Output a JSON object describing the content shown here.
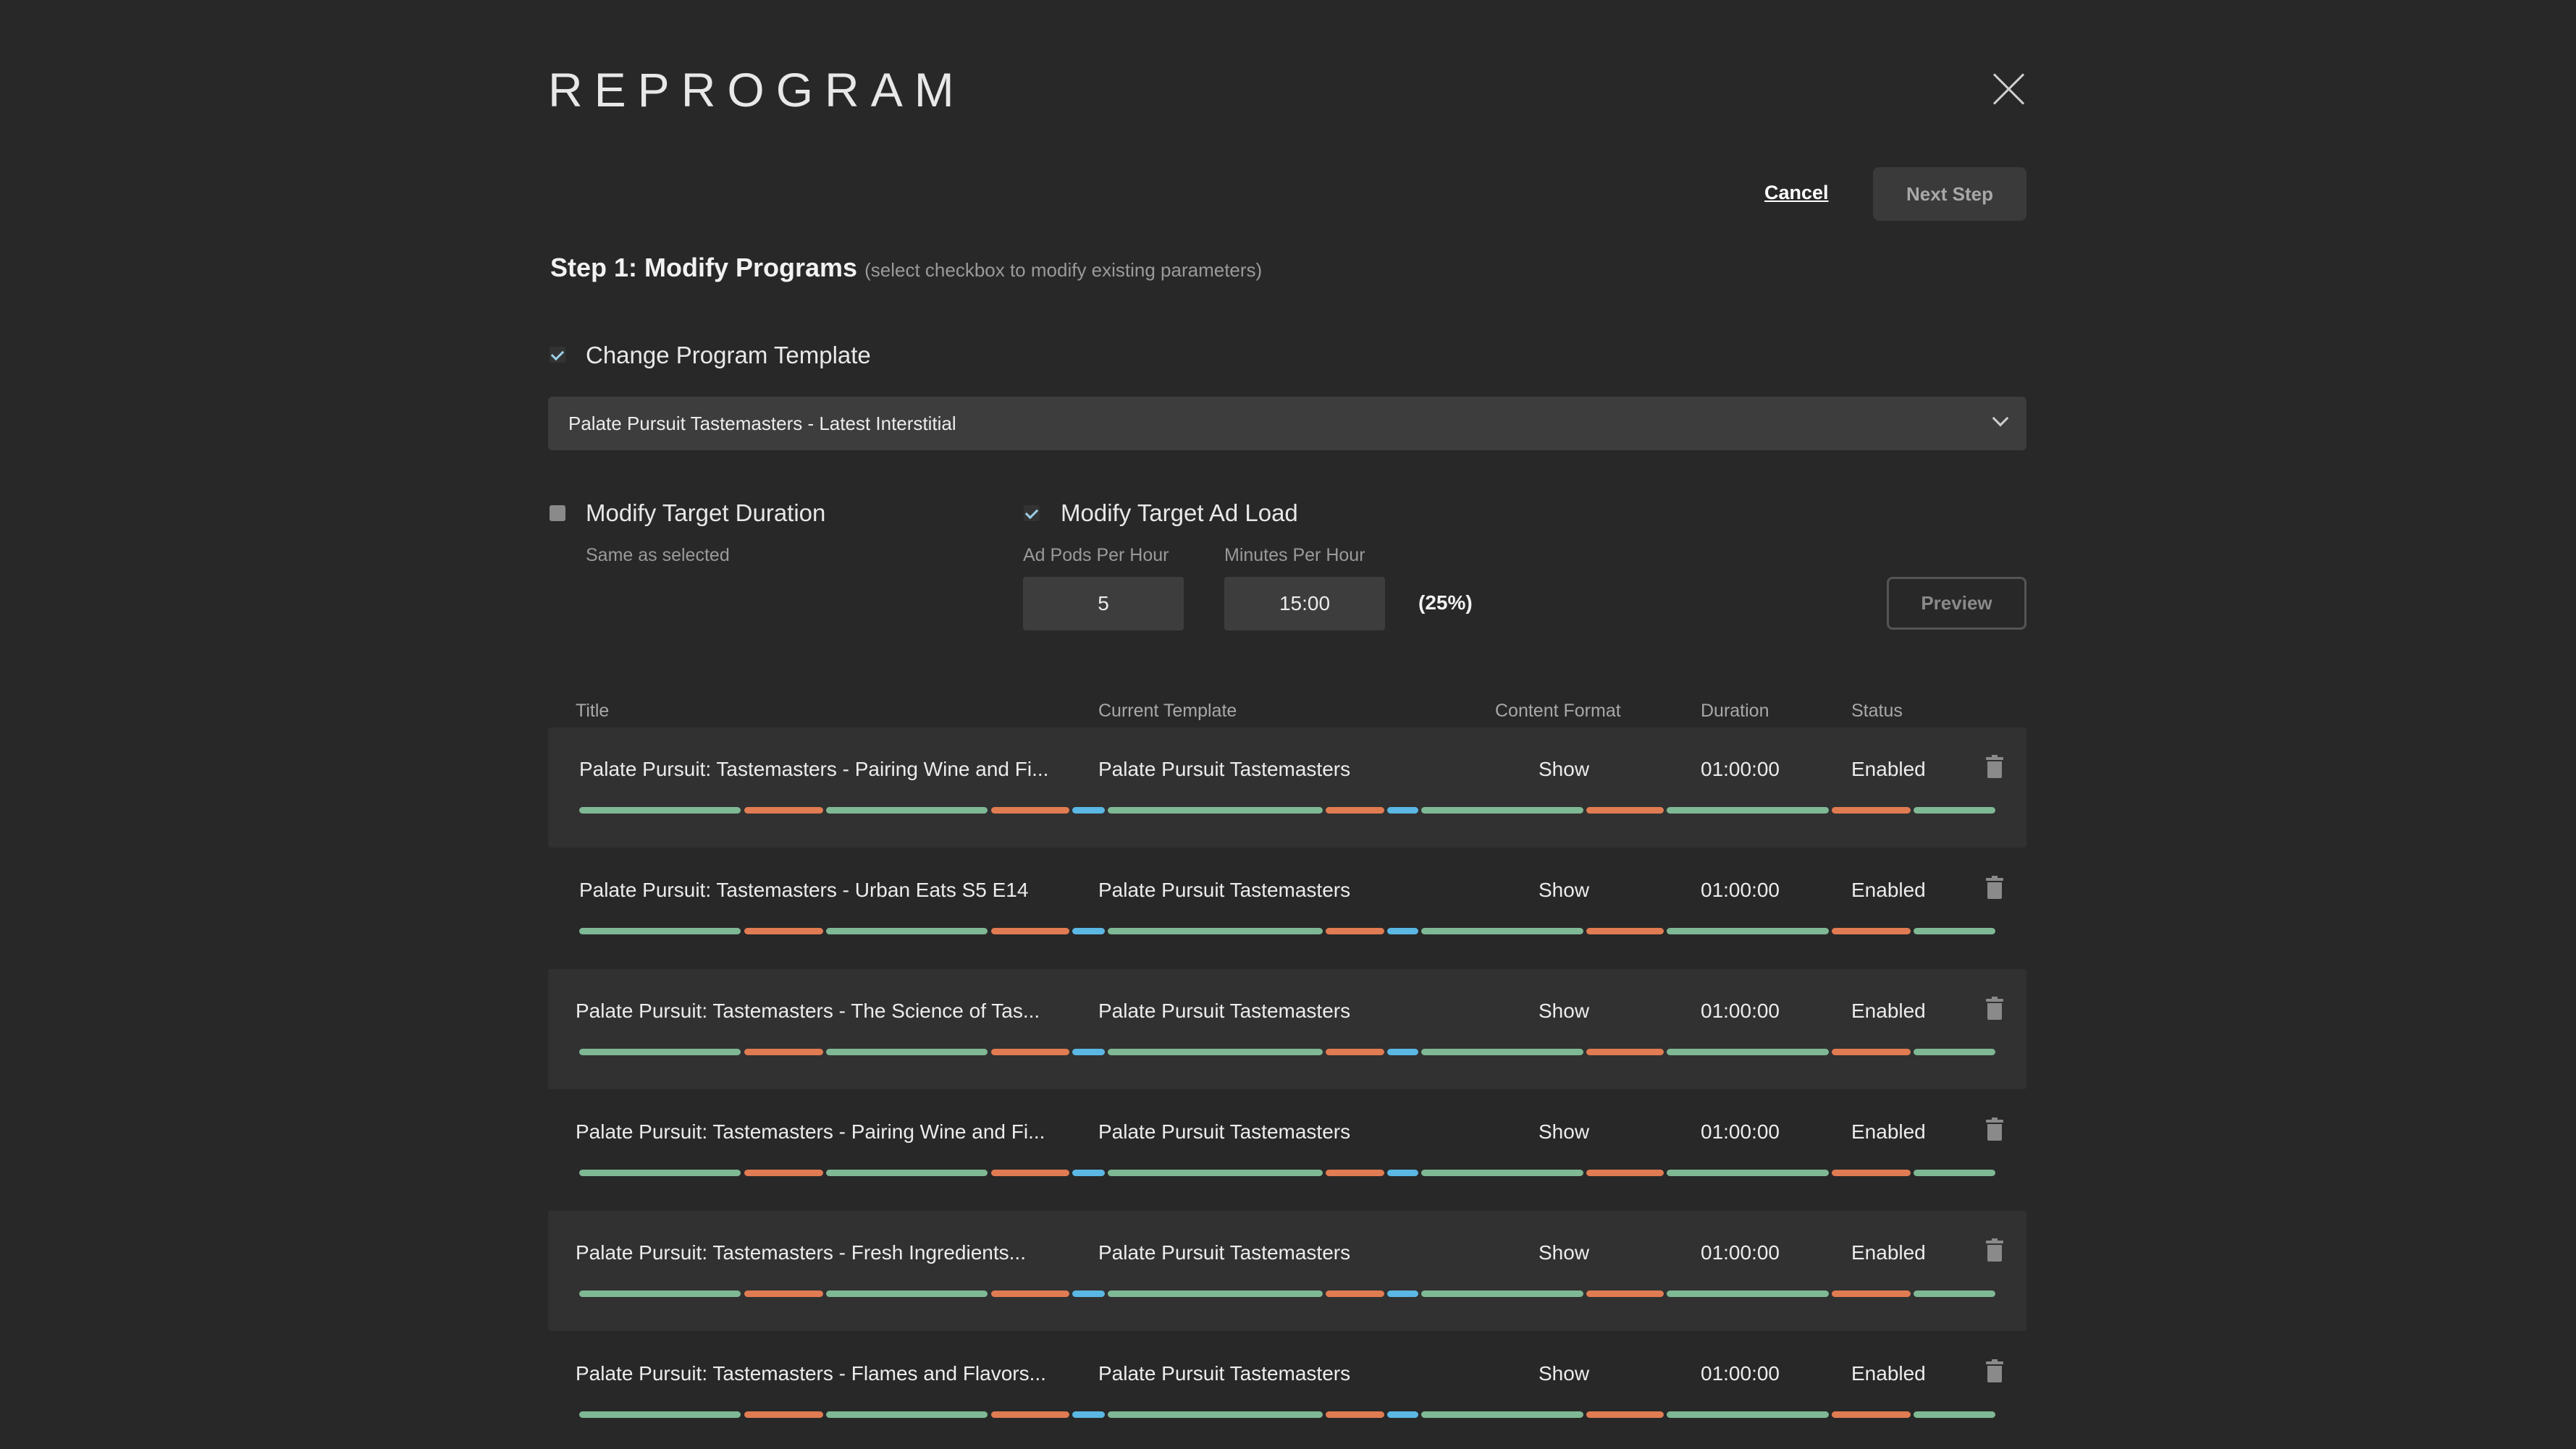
{
  "modal": {
    "title": "REPROGRAM",
    "cancel_label": "Cancel",
    "next_step_label": "Next Step"
  },
  "step": {
    "heading": "Step 1: Modify Programs",
    "hint": "(select checkbox to modify existing parameters)"
  },
  "template_option": {
    "label": "Change Program Template",
    "checked": true,
    "selected_value": "Palate Pursuit Tastemasters - Latest Interstitial"
  },
  "duration_option": {
    "label": "Modify Target Duration",
    "checked": false,
    "sublabel": "Same as selected"
  },
  "adload_option": {
    "label": "Modify Target Ad Load",
    "checked": true,
    "pods_label": "Ad Pods Per Hour",
    "pods_value": "5",
    "minutes_label": "Minutes Per Hour",
    "minutes_value": "15:00",
    "percent": "(25%)",
    "preview_label": "Preview"
  },
  "table": {
    "columns": [
      "Title",
      "Current Template",
      "Content Format",
      "Duration",
      "Status"
    ],
    "rows": [
      {
        "title": "Palate Pursuit: Tastemasters - Pairing Wine and Fi...",
        "template": "Palate Pursuit Tastemasters",
        "format": "Show",
        "duration": "01:00:00",
        "status": "Enabled"
      },
      {
        "title": "Palate Pursuit: Tastemasters - Urban Eats S5 E14",
        "template": "Palate Pursuit Tastemasters",
        "format": "Show",
        "duration": "01:00:00",
        "status": "Enabled"
      },
      {
        "title": "Palate Pursuit: Tastemasters - The Science of Tas...",
        "template": "Palate Pursuit Tastemasters",
        "format": "Show",
        "duration": "01:00:00",
        "status": "Enabled"
      },
      {
        "title": "Palate Pursuit: Tastemasters - Pairing Wine and Fi...",
        "template": "Palate Pursuit Tastemasters",
        "format": "Show",
        "duration": "01:00:00",
        "status": "Enabled"
      },
      {
        "title": "Palate Pursuit: Tastemasters - Fresh Ingredients...",
        "template": "Palate Pursuit Tastemasters",
        "format": "Show",
        "duration": "01:00:00",
        "status": "Enabled"
      },
      {
        "title": "Palate Pursuit: Tastemasters - Flames and Flavors...",
        "template": "Palate Pursuit Tastemasters",
        "format": "Show",
        "duration": "01:00:00",
        "status": "Enabled"
      }
    ]
  },
  "timeline_colors": {
    "content": "#7fb894",
    "ad": "#e07b52",
    "interstitial": "#5bb7e3"
  }
}
